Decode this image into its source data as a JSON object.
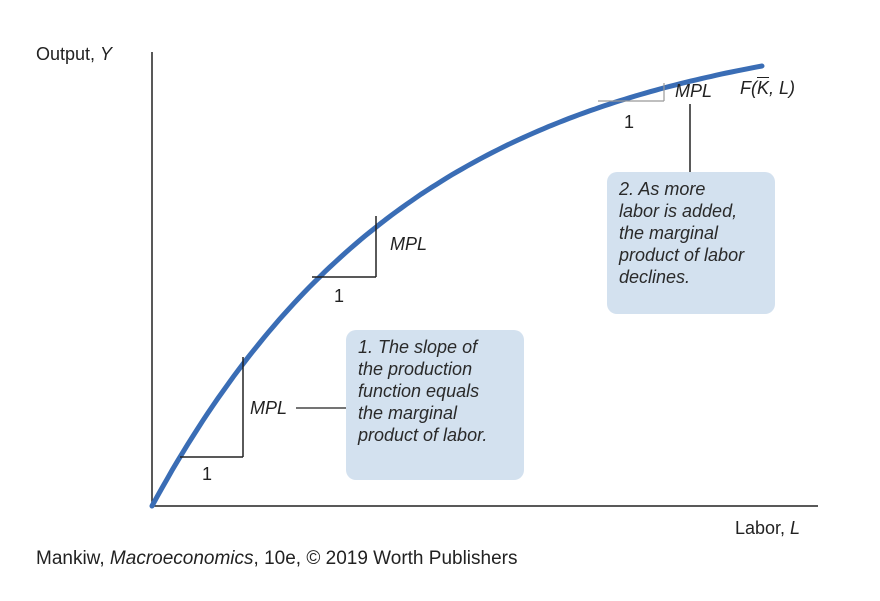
{
  "axes": {
    "y_label_prefix": "Output, ",
    "y_symbol": "Y",
    "x_label_prefix": "Labor, ",
    "x_symbol": "L"
  },
  "curve": {
    "label_prefix": "F(",
    "label_capital": "K",
    "label_suffix": ", L)",
    "color": "#3a6db5"
  },
  "slope_triangles": [
    {
      "mpl_label": "MPL",
      "run_label": "1"
    },
    {
      "mpl_label": "MPL",
      "run_label": "1"
    },
    {
      "mpl_label": "MPL",
      "run_label": "1"
    }
  ],
  "callouts": [
    {
      "lines": [
        "1. The slope of",
        "the production",
        "function equals",
        "the marginal",
        "product of labor."
      ]
    },
    {
      "lines": [
        "2. As more",
        "labor is added,",
        "the marginal",
        "product of labor",
        "declines."
      ]
    }
  ],
  "callout_color": "#d3e1ef",
  "credit": {
    "before": "Mankiw, ",
    "title": "Macroeconomics",
    "after": ", 10e, © 2019 Worth Publishers"
  }
}
